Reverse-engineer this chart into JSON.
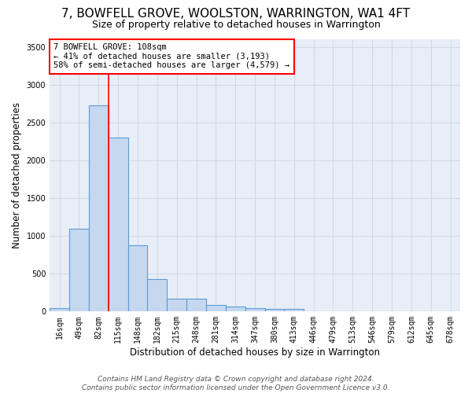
{
  "title": "7, BOWFELL GROVE, WOOLSTON, WARRINGTON, WA1 4FT",
  "subtitle": "Size of property relative to detached houses in Warrington",
  "xlabel": "Distribution of detached houses by size in Warrington",
  "ylabel": "Number of detached properties",
  "bar_labels": [
    "16sqm",
    "49sqm",
    "82sqm",
    "115sqm",
    "148sqm",
    "182sqm",
    "215sqm",
    "248sqm",
    "281sqm",
    "314sqm",
    "347sqm",
    "380sqm",
    "413sqm",
    "446sqm",
    "479sqm",
    "513sqm",
    "546sqm",
    "579sqm",
    "612sqm",
    "645sqm",
    "678sqm"
  ],
  "bar_values": [
    50,
    1100,
    2730,
    2300,
    880,
    430,
    170,
    170,
    90,
    65,
    50,
    30,
    30,
    0,
    0,
    0,
    0,
    0,
    0,
    0,
    0
  ],
  "bar_color": "#c5d8f0",
  "bar_edge_color": "#5b9bd5",
  "background_color": "#e8eef7",
  "vline_color": "red",
  "vline_pos": 2.5,
  "annotation_text": "7 BOWFELL GROVE: 108sqm\n← 41% of detached houses are smaller (3,193)\n58% of semi-detached houses are larger (4,579) →",
  "annotation_box_color": "white",
  "annotation_box_edge": "red",
  "ylim": [
    0,
    3600
  ],
  "yticks": [
    0,
    500,
    1000,
    1500,
    2000,
    2500,
    3000,
    3500
  ],
  "footer_line1": "Contains HM Land Registry data © Crown copyright and database right 2024.",
  "footer_line2": "Contains public sector information licensed under the Open Government Licence v3.0.",
  "title_fontsize": 11,
  "subtitle_fontsize": 9,
  "axis_label_fontsize": 8.5,
  "tick_fontsize": 7,
  "annotation_fontsize": 7.5,
  "footer_fontsize": 6.5,
  "grid_color": "#d0d8e8",
  "grid_linewidth": 0.8
}
